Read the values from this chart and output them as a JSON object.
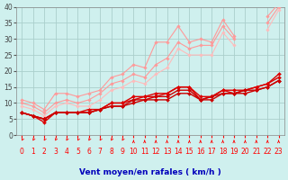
{
  "x": [
    0,
    1,
    2,
    3,
    4,
    5,
    6,
    7,
    8,
    9,
    10,
    11,
    12,
    13,
    14,
    15,
    16,
    17,
    18,
    19,
    20,
    21,
    22,
    23
  ],
  "series": [
    {
      "name": "light1",
      "color": "#ff9999",
      "linewidth": 0.8,
      "marker": "D",
      "markersize": 1.8,
      "y": [
        11,
        10,
        8,
        13,
        13,
        12,
        13,
        14,
        18,
        19,
        22,
        21,
        29,
        29,
        34,
        29,
        30,
        29,
        36,
        31,
        null,
        null,
        37,
        41
      ]
    },
    {
      "name": "light2",
      "color": "#ff9999",
      "linewidth": 0.8,
      "marker": "D",
      "markersize": 1.8,
      "y": [
        10,
        9,
        7,
        10,
        11,
        10,
        11,
        13,
        16,
        17,
        19,
        18,
        22,
        24,
        29,
        27,
        28,
        28,
        34,
        30,
        null,
        null,
        35,
        40
      ]
    },
    {
      "name": "light3",
      "color": "#ffbbbb",
      "linewidth": 0.8,
      "marker": "D",
      "markersize": 1.8,
      "y": [
        9,
        8,
        6,
        9,
        10,
        9,
        9,
        11,
        14,
        15,
        17,
        16,
        19,
        21,
        27,
        25,
        25,
        25,
        32,
        28,
        null,
        null,
        33,
        39
      ]
    },
    {
      "name": "dark1",
      "color": "#dd0000",
      "linewidth": 1.0,
      "marker": "D",
      "markersize": 2.0,
      "y": [
        7,
        6,
        4,
        7,
        7,
        7,
        7,
        8,
        10,
        10,
        12,
        12,
        13,
        13,
        15,
        15,
        11,
        12,
        14,
        14,
        14,
        15,
        16,
        19
      ]
    },
    {
      "name": "dark2",
      "color": "#dd0000",
      "linewidth": 1.0,
      "marker": "D",
      "markersize": 2.0,
      "y": [
        7,
        6,
        5,
        7,
        7,
        7,
        8,
        8,
        10,
        10,
        11,
        12,
        12,
        13,
        15,
        15,
        12,
        12,
        14,
        13,
        14,
        15,
        16,
        18
      ]
    },
    {
      "name": "dark3",
      "color": "#cc0000",
      "linewidth": 1.0,
      "marker": "D",
      "markersize": 2.0,
      "y": [
        7,
        6,
        5,
        7,
        7,
        7,
        7,
        8,
        9,
        9,
        11,
        11,
        12,
        12,
        14,
        14,
        11,
        12,
        13,
        13,
        14,
        14,
        15,
        17
      ]
    },
    {
      "name": "dark4",
      "color": "#cc0000",
      "linewidth": 1.0,
      "marker": "D",
      "markersize": 2.0,
      "y": [
        7,
        6,
        5,
        7,
        7,
        7,
        7,
        8,
        9,
        9,
        10,
        11,
        11,
        11,
        13,
        13,
        11,
        11,
        13,
        13,
        13,
        14,
        15,
        17
      ]
    }
  ],
  "xlabel": "Vent moyen/en rafales ( km/h )",
  "xlim": [
    -0.5,
    23.5
  ],
  "ylim": [
    0,
    40
  ],
  "yticks": [
    0,
    5,
    10,
    15,
    20,
    25,
    30,
    35,
    40
  ],
  "xticks": [
    0,
    1,
    2,
    3,
    4,
    5,
    6,
    7,
    8,
    9,
    10,
    11,
    12,
    13,
    14,
    15,
    16,
    17,
    18,
    19,
    20,
    21,
    22,
    23
  ],
  "bg_color": "#cff0ee",
  "grid_color": "#aacfcc",
  "tick_color": "#ff0000",
  "xlabel_color": "#0000bb",
  "xlabel_fontsize": 6.5,
  "tick_fontsize": 5.5,
  "arrow_cutoff": 9
}
